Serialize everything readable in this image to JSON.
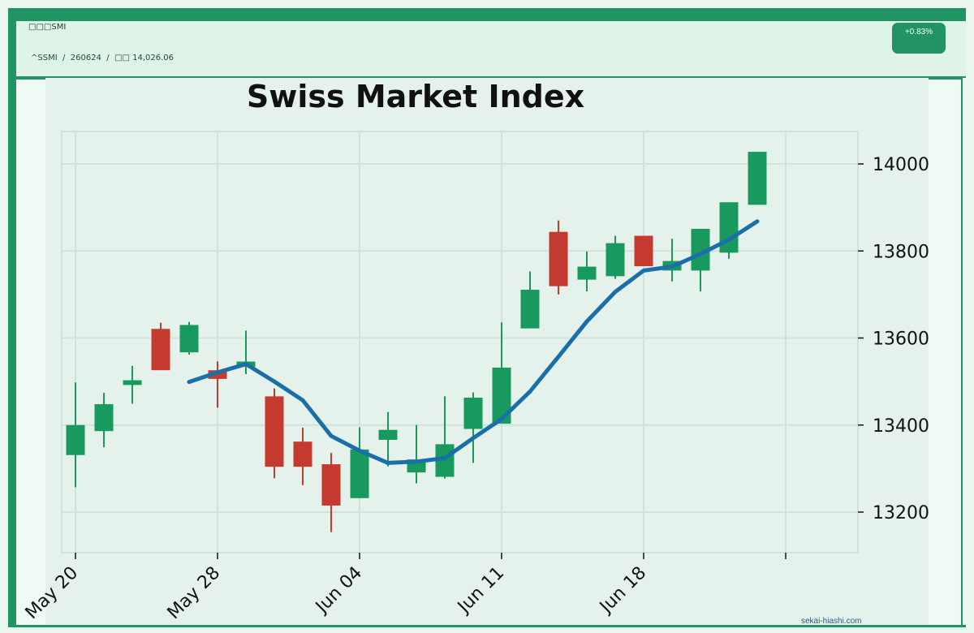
{
  "header": {
    "title": "□□□SMI",
    "symbol": "^SSMI",
    "date_code": "260624",
    "price_label": "□□ 14,026.06",
    "change_badge": "+0.83%"
  },
  "watermark": "sekai-hiashi.com",
  "colors": {
    "up": "#18995e",
    "down": "#c53a2e",
    "moving_average": "#1a6fa8",
    "frame": "#229463"
  },
  "chart_data": {
    "type": "candlestick",
    "title": "Swiss Market Index",
    "y_ticks": [
      13200,
      13400,
      13600,
      13800,
      14000
    ],
    "x_ticks": [
      "May 20",
      "May 28",
      "Jun 04",
      "Jun 11",
      "Jun 18"
    ],
    "ylim": [
      13100,
      14070
    ],
    "grid": true,
    "candles": [
      {
        "open": 13332,
        "high": 13498,
        "low": 13257,
        "close": 13399
      },
      {
        "open": 13387,
        "high": 13474,
        "low": 13349,
        "close": 13447
      },
      {
        "open": 13493,
        "high": 13536,
        "low": 13449,
        "close": 13502
      },
      {
        "open": 13620,
        "high": 13635,
        "low": 13527,
        "close": 13527
      },
      {
        "open": 13568,
        "high": 13637,
        "low": 13562,
        "close": 13629
      },
      {
        "open": 13525,
        "high": 13546,
        "low": 13440,
        "close": 13507
      },
      {
        "open": 13535,
        "high": 13617,
        "low": 13517,
        "close": 13545
      },
      {
        "open": 13465,
        "high": 13484,
        "low": 13278,
        "close": 13305
      },
      {
        "open": 13361,
        "high": 13394,
        "low": 13262,
        "close": 13305
      },
      {
        "open": 13309,
        "high": 13336,
        "low": 13154,
        "close": 13216
      },
      {
        "open": 13233,
        "high": 13395,
        "low": 13233,
        "close": 13343
      },
      {
        "open": 13367,
        "high": 13430,
        "low": 13305,
        "close": 13388
      },
      {
        "open": 13292,
        "high": 13400,
        "low": 13266,
        "close": 13320
      },
      {
        "open": 13282,
        "high": 13466,
        "low": 13277,
        "close": 13355
      },
      {
        "open": 13392,
        "high": 13475,
        "low": 13313,
        "close": 13462
      },
      {
        "open": 13404,
        "high": 13636,
        "low": 13404,
        "close": 13531
      },
      {
        "open": 13623,
        "high": 13753,
        "low": 13623,
        "close": 13710
      },
      {
        "open": 13843,
        "high": 13870,
        "low": 13700,
        "close": 13720
      },
      {
        "open": 13735,
        "high": 13799,
        "low": 13707,
        "close": 13763
      },
      {
        "open": 13743,
        "high": 13835,
        "low": 13736,
        "close": 13817
      },
      {
        "open": 13834,
        "high": 13834,
        "low": 13766,
        "close": 13766
      },
      {
        "open": 13756,
        "high": 13828,
        "low": 13730,
        "close": 13776
      },
      {
        "open": 13756,
        "high": 13850,
        "low": 13707,
        "close": 13850
      },
      {
        "open": 13797,
        "high": 13911,
        "low": 13782,
        "close": 13911
      },
      {
        "open": 13907,
        "high": 14027,
        "low": 13907,
        "close": 14027
      }
    ],
    "moving_average": [
      null,
      null,
      null,
      null,
      13499,
      13521,
      13540,
      13500,
      13457,
      13375,
      13341,
      13313,
      13316,
      13324,
      13370,
      13414,
      13477,
      13557,
      13638,
      13706,
      13755,
      13764,
      13793,
      13826,
      13868
    ]
  }
}
